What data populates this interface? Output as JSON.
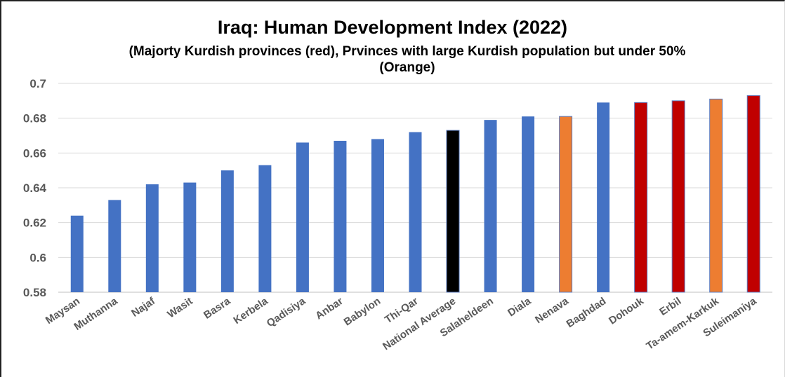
{
  "chart_data": {
    "type": "bar",
    "title": "Iraq: Human Development Index (2022)",
    "subtitle": "(Majorty Kurdish provinces (red), Prvinces with large Kurdish population but under 50% (Orange)",
    "xlabel": "",
    "ylabel": "",
    "ylim": [
      0.58,
      0.7
    ],
    "yticks": [
      "0.58",
      "0.6",
      "0.62",
      "0.64",
      "0.66",
      "0.68",
      "0.7"
    ],
    "grid": true,
    "legend": "none",
    "categories": [
      "Maysan",
      "Muthanna",
      "Najaf",
      "Wasit",
      "Basra",
      "Kerbela",
      "Qadisiya",
      "Anbar",
      "Babylon",
      "Thi-Qar",
      "National Average",
      "Salaheldeen",
      "Diala",
      "Nenava",
      "Baghdad",
      "Dohouk",
      "Erbil",
      "Ta-amem-Karkuk",
      "Suleimaniya"
    ],
    "values": [
      0.624,
      0.633,
      0.642,
      0.643,
      0.65,
      0.653,
      0.666,
      0.667,
      0.668,
      0.672,
      0.673,
      0.679,
      0.681,
      0.681,
      0.689,
      0.689,
      0.69,
      0.691,
      0.693
    ],
    "bar_colors": [
      "#4472c4",
      "#4472c4",
      "#4472c4",
      "#4472c4",
      "#4472c4",
      "#4472c4",
      "#4472c4",
      "#4472c4",
      "#4472c4",
      "#4472c4",
      "#000000",
      "#4472c4",
      "#4472c4",
      "#ed7d31",
      "#4472c4",
      "#c00000",
      "#c00000",
      "#ed7d31",
      "#c00000"
    ],
    "colors": {
      "default": "#4472c4",
      "kurdish_majority": "#c00000",
      "kurdish_large_population": "#ed7d31",
      "national_average": "#000000"
    }
  }
}
